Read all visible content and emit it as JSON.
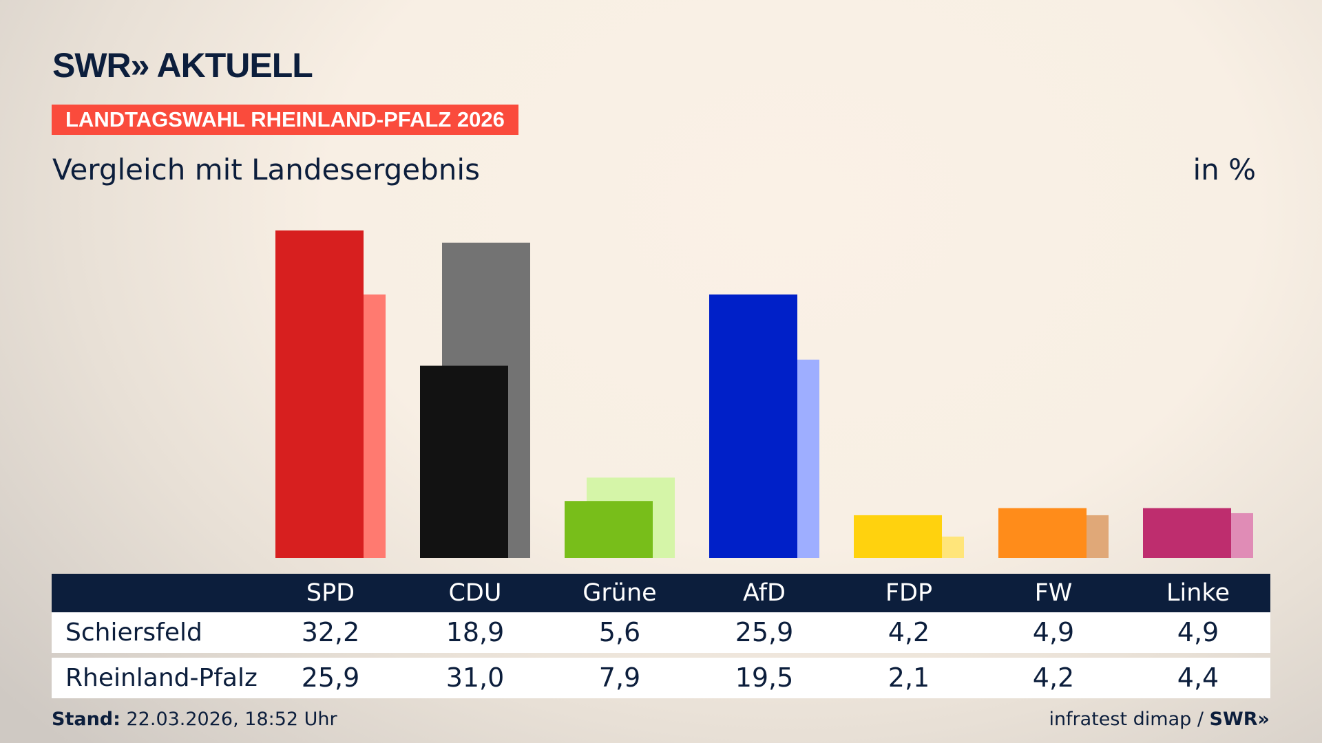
{
  "header": {
    "logo": "SWR» AKTUELL",
    "banner": "LANDTAGSWAHL RHEINLAND-PFALZ 2026",
    "subtitle": "Vergleich mit Landesergebnis",
    "unit": "in %"
  },
  "chart_data": {
    "type": "bar",
    "categories": [
      "SPD",
      "CDU",
      "Grüne",
      "AfD",
      "FDP",
      "FW",
      "Linke"
    ],
    "series": [
      {
        "name": "Schiersfeld",
        "values": [
          32.2,
          18.9,
          5.6,
          25.9,
          4.2,
          4.9,
          4.9
        ]
      },
      {
        "name": "Rheinland-Pfalz",
        "values": [
          25.9,
          31.0,
          7.9,
          19.5,
          2.1,
          4.2,
          4.4
        ]
      }
    ],
    "colors": {
      "main": [
        "#d71f1f",
        "#121212",
        "#78be1a",
        "#0020c8",
        "#ffd20e",
        "#ff8c1a",
        "#be2d6e"
      ],
      "light": [
        "#ff7a70",
        "#737373",
        "#d5f5a8",
        "#9eaeff",
        "#ffe57a",
        "#e0a878",
        "#e08cb6"
      ]
    },
    "ylim": [
      0,
      33
    ]
  },
  "footer": {
    "stand_label": "Stand:",
    "stand_value": " 22.03.2026, 18:52 Uhr",
    "source": "infratest dimap / ",
    "source_logo": "SWR»"
  }
}
